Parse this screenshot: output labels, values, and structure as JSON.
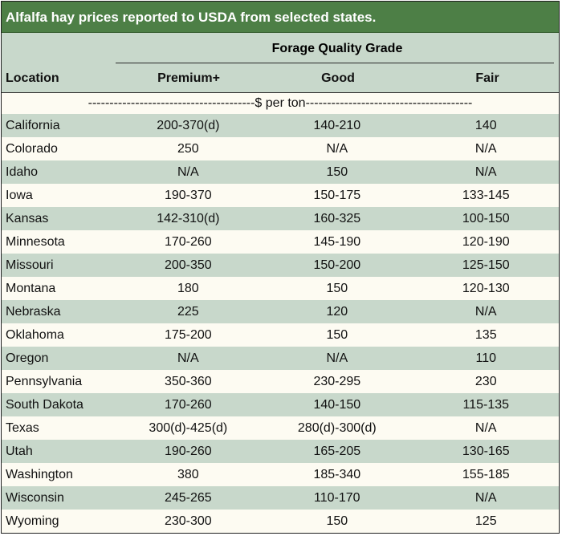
{
  "title": "Alfalfa hay prices reported to USDA from selected states.",
  "header": {
    "group": "Forage Quality Grade",
    "location": "Location",
    "premium": "Premium+",
    "good": "Good",
    "fair": "Fair"
  },
  "units": "---------------------------------------$ per ton---------------------------------------",
  "colors": {
    "title_bg": "#4d7f46",
    "shade": "#c8d8cb",
    "light": "#fdfbf2"
  },
  "rows": [
    {
      "location": "California",
      "premium": "200-370(d)",
      "good": "140-210",
      "fair": "140"
    },
    {
      "location": "Colorado",
      "premium": "250",
      "good": "N/A",
      "fair": "N/A"
    },
    {
      "location": "Idaho",
      "premium": "N/A",
      "good": "150",
      "fair": "N/A"
    },
    {
      "location": "Iowa",
      "premium": "190-370",
      "good": "150-175",
      "fair": "133-145"
    },
    {
      "location": "Kansas",
      "premium": "142-310(d)",
      "good": "160-325",
      "fair": "100-150"
    },
    {
      "location": "Minnesota",
      "premium": "170-260",
      "good": "145-190",
      "fair": "120-190"
    },
    {
      "location": "Missouri",
      "premium": "200-350",
      "good": "150-200",
      "fair": "125-150"
    },
    {
      "location": "Montana",
      "premium": "180",
      "good": "150",
      "fair": "120-130"
    },
    {
      "location": "Nebraska",
      "premium": "225",
      "good": "120",
      "fair": "N/A"
    },
    {
      "location": "Oklahoma",
      "premium": "175-200",
      "good": "150",
      "fair": "135"
    },
    {
      "location": "Oregon",
      "premium": "N/A",
      "good": "N/A",
      "fair": "110"
    },
    {
      "location": "Pennsylvania",
      "premium": "350-360",
      "good": "230-295",
      "fair": "230"
    },
    {
      "location": "South Dakota",
      "premium": "170-260",
      "good": "140-150",
      "fair": "115-135"
    },
    {
      "location": "Texas",
      "premium": "300(d)-425(d)",
      "good": "280(d)-300(d)",
      "fair": "N/A"
    },
    {
      "location": "Utah",
      "premium": "190-260",
      "good": "165-205",
      "fair": "130-165"
    },
    {
      "location": "Washington",
      "premium": "380",
      "good": "185-340",
      "fair": "155-185"
    },
    {
      "location": "Wisconsin",
      "premium": "245-265",
      "good": "110-170",
      "fair": "N/A"
    },
    {
      "location": "Wyoming",
      "premium": "230-300",
      "good": "150",
      "fair": "125"
    }
  ]
}
